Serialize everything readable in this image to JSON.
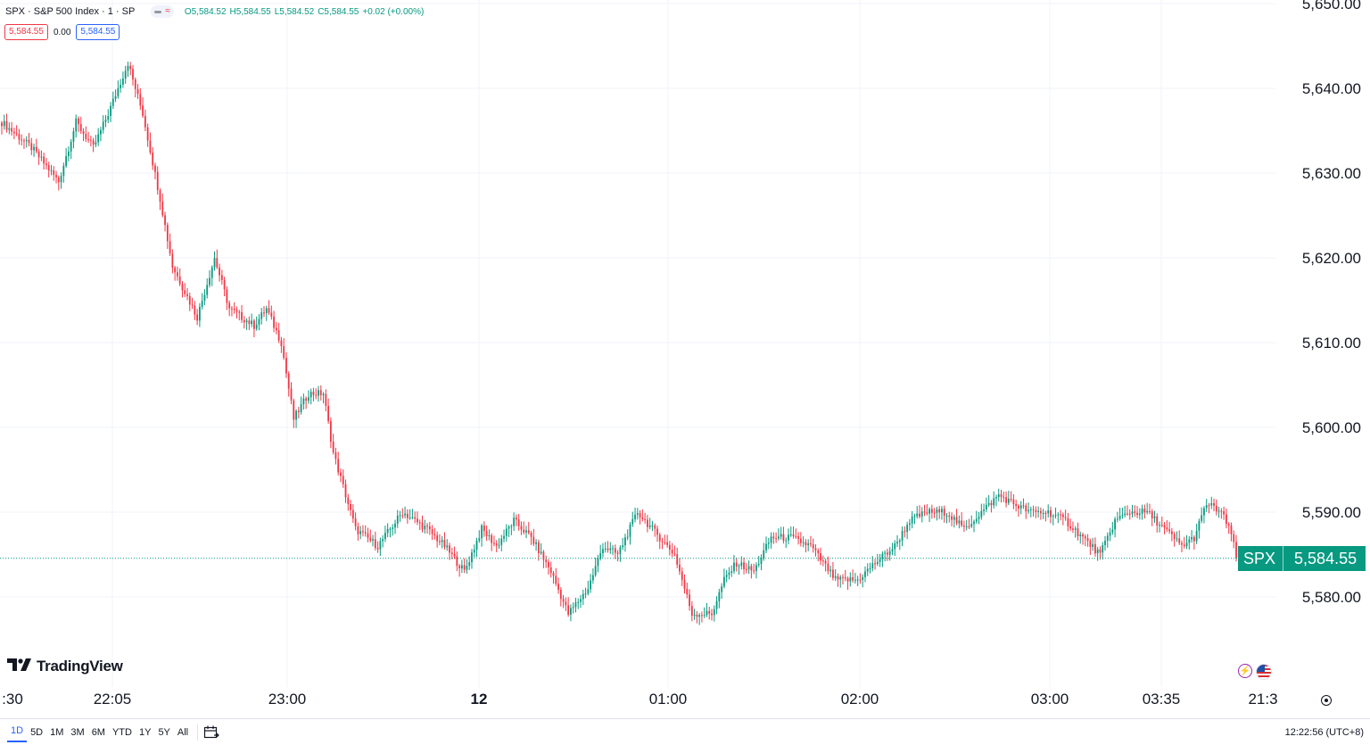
{
  "header": {
    "title": "SPX · S&P 500 Index · 1 · SP",
    "status_icon": "market-status-wave",
    "ohlc": {
      "open": "O5,584.52",
      "high": "H5,584.55",
      "low": "L5,584.52",
      "close": "C5,584.55"
    },
    "change": "+0.02 (+0.00%)",
    "bid": "5,584.55",
    "spread": "0.00",
    "ask": "5,584.55"
  },
  "watermark": "TradingView",
  "price_tag": {
    "symbol": "SPX",
    "price": "5,584.55"
  },
  "bottom_bar": {
    "ranges": [
      "1D",
      "5D",
      "1M",
      "3M",
      "6M",
      "YTD",
      "1Y",
      "5Y",
      "All"
    ],
    "active_range": "1D",
    "calendar_icon": "calendar-range-icon",
    "clock": "12:22:56 (UTC+8)"
  },
  "colors": {
    "up": "#089981",
    "down": "#f23645",
    "grid": "#f0f3fa",
    "axis_text": "#131722",
    "last_price_line": "#089981"
  },
  "chart_data": {
    "type": "candlestick",
    "title": "",
    "symbol": "SPX",
    "interval": "1",
    "grid": true,
    "ylim": [
      5570,
      5650
    ],
    "y_ticks": [
      "5,650.00",
      "5,640.00",
      "5,630.00",
      "5,620.00",
      "5,610.00",
      "5,600.00",
      "5,590.00",
      "5,580.00"
    ],
    "y_tick_values": [
      5650,
      5640,
      5630,
      5620,
      5610,
      5600,
      5590,
      5580
    ],
    "x_ticks": [
      ":30",
      "22:05",
      "23:00",
      "12",
      "01:00",
      "02:00",
      "03:00",
      "03:35",
      "21:3"
    ],
    "x_tick_bold": [
      false,
      false,
      false,
      true,
      false,
      false,
      false,
      false,
      false
    ],
    "last_price": 5584.55,
    "close_path": [
      [
        0,
        5636
      ],
      [
        12,
        5633
      ],
      [
        23,
        5629
      ],
      [
        30,
        5636
      ],
      [
        37,
        5633
      ],
      [
        43,
        5637
      ],
      [
        51,
        5643
      ],
      [
        57,
        5637
      ],
      [
        64,
        5627
      ],
      [
        69,
        5619
      ],
      [
        79,
        5613
      ],
      [
        86,
        5620
      ],
      [
        92,
        5614
      ],
      [
        102,
        5612
      ],
      [
        107,
        5614
      ],
      [
        113,
        5610
      ],
      [
        118,
        5601
      ],
      [
        124,
        5604
      ],
      [
        130,
        5604
      ],
      [
        134,
        5597
      ],
      [
        143,
        5588
      ],
      [
        152,
        5586
      ],
      [
        162,
        5590
      ],
      [
        172,
        5588
      ],
      [
        179,
        5586
      ],
      [
        187,
        5583
      ],
      [
        194,
        5588
      ],
      [
        200,
        5586
      ],
      [
        207,
        5589
      ],
      [
        214,
        5587
      ],
      [
        222,
        5583
      ],
      [
        229,
        5578
      ],
      [
        237,
        5581
      ],
      [
        243,
        5586
      ],
      [
        249,
        5585
      ],
      [
        257,
        5590
      ],
      [
        263,
        5588
      ],
      [
        272,
        5585
      ],
      [
        279,
        5578
      ],
      [
        287,
        5578
      ],
      [
        292,
        5582
      ],
      [
        297,
        5584
      ],
      [
        304,
        5583
      ],
      [
        311,
        5587
      ],
      [
        319,
        5587
      ],
      [
        327,
        5586
      ],
      [
        337,
        5582
      ],
      [
        346,
        5582
      ],
      [
        353,
        5584
      ],
      [
        361,
        5586
      ],
      [
        367,
        5589
      ],
      [
        374,
        5590
      ],
      [
        382,
        5590
      ],
      [
        389,
        5588
      ],
      [
        396,
        5590
      ],
      [
        403,
        5592
      ],
      [
        409,
        5591
      ],
      [
        416,
        5590
      ],
      [
        423,
        5590
      ],
      [
        430,
        5589
      ],
      [
        437,
        5587
      ],
      [
        444,
        5585
      ],
      [
        450,
        5589
      ],
      [
        456,
        5590
      ],
      [
        463,
        5590
      ],
      [
        470,
        5588
      ],
      [
        477,
        5586
      ],
      [
        482,
        5587
      ],
      [
        487,
        5591
      ],
      [
        493,
        5590
      ],
      [
        499,
        5586
      ]
    ]
  }
}
